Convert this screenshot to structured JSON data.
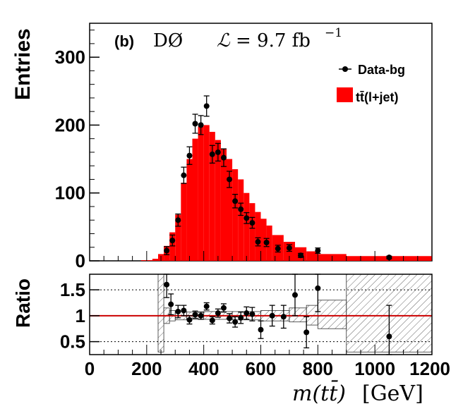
{
  "chart_data": [
    {
      "type": "bar",
      "panel": "top",
      "ylabel": "Entries",
      "ylim": [
        0,
        350
      ],
      "yticks": [
        "0",
        "100",
        "200",
        "300"
      ],
      "xlim": [
        0,
        1200
      ],
      "annotation_panel": "(b)",
      "annotation_experiment": "DØ",
      "annotation_lumi_symbol": "ℒ",
      "annotation_lumi_value": "= 9.7 fb",
      "annotation_lumi_exp": "−1",
      "legend_position": "top-right",
      "legend": [
        {
          "label": "Data-bg",
          "marker": "point",
          "color": "#000000"
        },
        {
          "label": "tt̄(l+jet)",
          "marker": "fill",
          "color": "#ff0000"
        }
      ],
      "histogram": {
        "name": "tt̄(l+jet)",
        "color": "#ff0000",
        "bins": [
          {
            "lo": 180,
            "hi": 220,
            "value": 1
          },
          {
            "lo": 220,
            "hi": 240,
            "value": 3
          },
          {
            "lo": 240,
            "hi": 260,
            "value": 10
          },
          {
            "lo": 260,
            "hi": 280,
            "value": 22
          },
          {
            "lo": 280,
            "hi": 300,
            "value": 42
          },
          {
            "lo": 300,
            "hi": 320,
            "value": 68
          },
          {
            "lo": 320,
            "hi": 340,
            "value": 115
          },
          {
            "lo": 340,
            "hi": 360,
            "value": 150
          },
          {
            "lo": 360,
            "hi": 380,
            "value": 180
          },
          {
            "lo": 380,
            "hi": 400,
            "value": 198
          },
          {
            "lo": 400,
            "hi": 420,
            "value": 200
          },
          {
            "lo": 420,
            "hi": 440,
            "value": 190
          },
          {
            "lo": 440,
            "hi": 460,
            "value": 178
          },
          {
            "lo": 460,
            "hi": 480,
            "value": 165
          },
          {
            "lo": 480,
            "hi": 500,
            "value": 150
          },
          {
            "lo": 500,
            "hi": 520,
            "value": 135
          },
          {
            "lo": 520,
            "hi": 540,
            "value": 120
          },
          {
            "lo": 540,
            "hi": 560,
            "value": 100
          },
          {
            "lo": 560,
            "hi": 580,
            "value": 85
          },
          {
            "lo": 580,
            "hi": 600,
            "value": 72
          },
          {
            "lo": 600,
            "hi": 620,
            "value": 62
          },
          {
            "lo": 620,
            "hi": 640,
            "value": 52
          },
          {
            "lo": 640,
            "hi": 680,
            "value": 38
          },
          {
            "lo": 680,
            "hi": 720,
            "value": 28
          },
          {
            "lo": 720,
            "hi": 760,
            "value": 20
          },
          {
            "lo": 760,
            "hi": 800,
            "value": 14
          },
          {
            "lo": 800,
            "hi": 900,
            "value": 10
          },
          {
            "lo": 900,
            "hi": 1200,
            "value": 7
          }
        ]
      },
      "data_points": {
        "name": "Data-bg",
        "points": [
          {
            "x": 270,
            "y": 15,
            "err": 6
          },
          {
            "x": 290,
            "y": 30,
            "err": 8
          },
          {
            "x": 310,
            "y": 60,
            "err": 9
          },
          {
            "x": 330,
            "y": 126,
            "err": 12
          },
          {
            "x": 350,
            "y": 155,
            "err": 13
          },
          {
            "x": 370,
            "y": 202,
            "err": 14
          },
          {
            "x": 390,
            "y": 200,
            "err": 14
          },
          {
            "x": 410,
            "y": 228,
            "err": 15
          },
          {
            "x": 430,
            "y": 157,
            "err": 13
          },
          {
            "x": 450,
            "y": 160,
            "err": 13
          },
          {
            "x": 470,
            "y": 152,
            "err": 13
          },
          {
            "x": 490,
            "y": 120,
            "err": 12
          },
          {
            "x": 510,
            "y": 88,
            "err": 10
          },
          {
            "x": 530,
            "y": 76,
            "err": 9
          },
          {
            "x": 550,
            "y": 63,
            "err": 8
          },
          {
            "x": 570,
            "y": 56,
            "err": 8
          },
          {
            "x": 590,
            "y": 28,
            "err": 6
          },
          {
            "x": 620,
            "y": 27,
            "err": 6
          },
          {
            "x": 660,
            "y": 18,
            "err": 5
          },
          {
            "x": 700,
            "y": 19,
            "err": 5
          },
          {
            "x": 740,
            "y": 8,
            "err": 3
          },
          {
            "x": 800,
            "y": 15,
            "err": 4
          },
          {
            "x": 1050,
            "y": 5,
            "err": 2
          }
        ]
      }
    },
    {
      "type": "scatter",
      "panel": "bottom",
      "ylabel": "Ratio",
      "xlabel_main": "m(tt̄)",
      "xlabel_unit": "[GeV]",
      "ylim": [
        0.25,
        1.8
      ],
      "yticks": [
        "0.5",
        "1",
        "1.5"
      ],
      "xlim": [
        0,
        1200
      ],
      "xticks": [
        "0",
        "200",
        "400",
        "600",
        "800",
        "1000",
        "1200"
      ],
      "reference_line": {
        "y": 1.0,
        "color": "#cc0000"
      },
      "dotted_lines": [
        0.5,
        1.5
      ],
      "uncertainty_band": [
        {
          "lo": 240,
          "hi": 260,
          "down": 0.3,
          "up": 1.8
        },
        {
          "lo": 260,
          "hi": 280,
          "down": 0.85,
          "up": 1.15
        },
        {
          "lo": 280,
          "hi": 300,
          "down": 0.9,
          "up": 1.1
        },
        {
          "lo": 300,
          "hi": 340,
          "down": 0.92,
          "up": 1.08
        },
        {
          "lo": 340,
          "hi": 400,
          "down": 0.93,
          "up": 1.07
        },
        {
          "lo": 400,
          "hi": 500,
          "down": 0.93,
          "up": 1.08
        },
        {
          "lo": 500,
          "hi": 600,
          "down": 0.92,
          "up": 1.08
        },
        {
          "lo": 600,
          "hi": 700,
          "down": 0.9,
          "up": 1.1
        },
        {
          "lo": 700,
          "hi": 760,
          "down": 0.88,
          "up": 1.15
        },
        {
          "lo": 760,
          "hi": 800,
          "down": 0.82,
          "up": 1.2
        },
        {
          "lo": 800,
          "hi": 900,
          "down": 0.75,
          "up": 1.3
        },
        {
          "lo": 900,
          "hi": 1200,
          "down": 0.3,
          "up": 1.8
        }
      ],
      "points": [
        {
          "x": 270,
          "y": 1.6,
          "err": 0.25
        },
        {
          "x": 285,
          "y": 1.22,
          "err": 0.2
        },
        {
          "x": 310,
          "y": 1.08,
          "err": 0.12
        },
        {
          "x": 330,
          "y": 1.1,
          "err": 0.1
        },
        {
          "x": 350,
          "y": 0.92,
          "err": 0.08
        },
        {
          "x": 370,
          "y": 1.02,
          "err": 0.07
        },
        {
          "x": 390,
          "y": 1.0,
          "err": 0.07
        },
        {
          "x": 410,
          "y": 1.18,
          "err": 0.07
        },
        {
          "x": 430,
          "y": 0.91,
          "err": 0.07
        },
        {
          "x": 450,
          "y": 1.05,
          "err": 0.08
        },
        {
          "x": 470,
          "y": 1.15,
          "err": 0.08
        },
        {
          "x": 490,
          "y": 0.95,
          "err": 0.09
        },
        {
          "x": 510,
          "y": 0.88,
          "err": 0.1
        },
        {
          "x": 530,
          "y": 0.96,
          "err": 0.11
        },
        {
          "x": 550,
          "y": 1.05,
          "err": 0.12
        },
        {
          "x": 570,
          "y": 1.03,
          "err": 0.13
        },
        {
          "x": 600,
          "y": 0.73,
          "err": 0.17
        },
        {
          "x": 640,
          "y": 1.0,
          "err": 0.2
        },
        {
          "x": 680,
          "y": 0.98,
          "err": 0.22
        },
        {
          "x": 720,
          "y": 1.4,
          "err": 0.4
        },
        {
          "x": 760,
          "y": 0.68,
          "err": 0.3
        },
        {
          "x": 800,
          "y": 1.53,
          "err": 0.45
        },
        {
          "x": 1050,
          "y": 0.6,
          "err": 0.6
        }
      ]
    }
  ]
}
